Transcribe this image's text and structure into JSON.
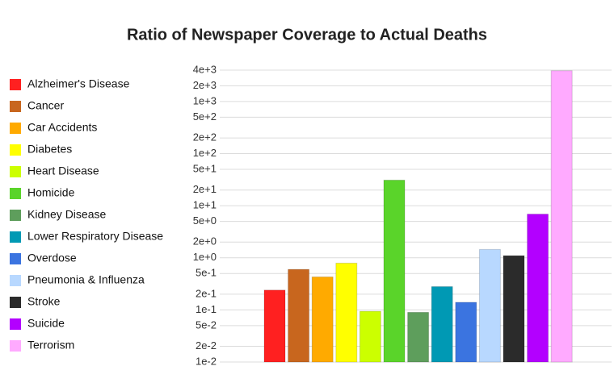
{
  "chart_data": {
    "type": "bar",
    "title": "Ratio of Newspaper Coverage to Actual Deaths",
    "categories": [
      "Alzheimer's Disease",
      "Cancer",
      "Car Accidents",
      "Diabetes",
      "Heart Disease",
      "Homicide",
      "Kidney Disease",
      "Lower Respiratory Disease",
      "Overdose",
      "Pneumonia & Influenza",
      "Stroke",
      "Suicide",
      "Terrorism"
    ],
    "values": [
      0.24,
      0.6,
      0.43,
      0.79,
      0.094,
      31,
      0.09,
      0.28,
      0.14,
      1.45,
      1.1,
      6.9,
      3900
    ],
    "colors": [
      "#ff2020",
      "#c8661e",
      "#ffaa00",
      "#ffff00",
      "#ccff00",
      "#5ad42a",
      "#5e9e5c",
      "#0099b4",
      "#3b74e0",
      "#b8d8ff",
      "#2b2b2b",
      "#b300ff",
      "#ffaaff"
    ],
    "log_scale": true,
    "grid": true,
    "legend": "left",
    "ylim": [
      0.01,
      4000
    ],
    "yticks": [
      {
        "value": 0.01,
        "label": "1e-2"
      },
      {
        "value": 0.02,
        "label": "2e-2"
      },
      {
        "value": 0.05,
        "label": "5e-2"
      },
      {
        "value": 0.1,
        "label": "1e-1"
      },
      {
        "value": 0.2,
        "label": "2e-1"
      },
      {
        "value": 0.5,
        "label": "5e-1"
      },
      {
        "value": 1,
        "label": "1e+0"
      },
      {
        "value": 2,
        "label": "2e+0"
      },
      {
        "value": 5,
        "label": "5e+0"
      },
      {
        "value": 10,
        "label": "1e+1"
      },
      {
        "value": 20,
        "label": "2e+1"
      },
      {
        "value": 50,
        "label": "5e+1"
      },
      {
        "value": 100,
        "label": "1e+2"
      },
      {
        "value": 200,
        "label": "2e+2"
      },
      {
        "value": 500,
        "label": "5e+2"
      },
      {
        "value": 1000,
        "label": "1e+3"
      },
      {
        "value": 2000,
        "label": "2e+3"
      },
      {
        "value": 4000,
        "label": "4e+3"
      }
    ]
  }
}
